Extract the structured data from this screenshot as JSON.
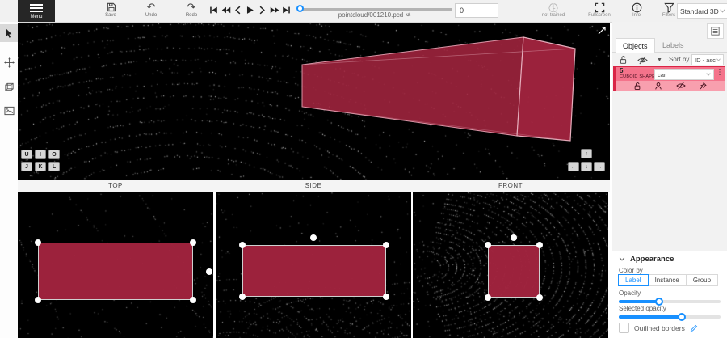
{
  "colors": {
    "accent": "#1890ff",
    "object_color": "#a3243f",
    "selection_bg": "#f4738b",
    "selection_bg_light": "#f89fae",
    "selection_border": "#d92546"
  },
  "topbar": {
    "menu_label": "Menu",
    "save_label": "Save",
    "undo_label": "Undo",
    "redo_label": "Redo",
    "undo_glyph": "↶",
    "redo_glyph": "↷",
    "player": {
      "filename": "pointcloud/001210.pcd",
      "frame_value": "0"
    },
    "ai_status_label": "not trained",
    "fullscreen_label": "Fullscreen",
    "info_label": "Info",
    "filters_label": "Filters",
    "workspace_value": "Standard 3D"
  },
  "main_view": {
    "hotkeys_row1": [
      "U",
      "I",
      "O"
    ],
    "hotkeys_row2": [
      "J",
      "K",
      "L"
    ],
    "arrows": [
      "↑",
      "←",
      "↓",
      "→"
    ]
  },
  "ortho_views": {
    "top_label": "TOP",
    "side_label": "SIDE",
    "front_label": "FRONT"
  },
  "right_panel": {
    "tabs": {
      "objects": "Objects",
      "labels": "Labels"
    },
    "sort": {
      "label": "Sort by",
      "value": "ID - asc..."
    },
    "object": {
      "id": "5",
      "kind": "CUBOID SHAPE",
      "label_value": "car"
    },
    "appearance": {
      "title": "Appearance",
      "color_by_label": "Color by",
      "options": [
        "Label",
        "Instance",
        "Group"
      ],
      "active_option": "Label",
      "opacity_label": "Opacity",
      "opacity_percent": 40,
      "selected_opacity_label": "Selected opacity",
      "selected_opacity_percent": 62,
      "outlined_borders_label": "Outlined borders"
    }
  }
}
